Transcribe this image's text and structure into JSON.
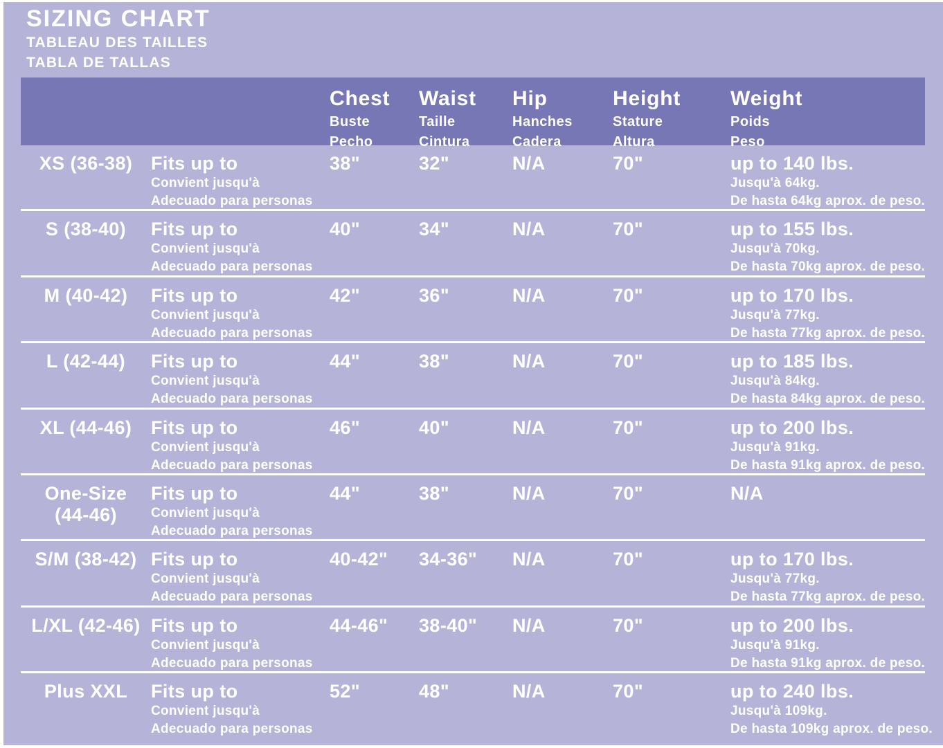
{
  "header": {
    "title": "SIZING CHART",
    "title_fr": "TABLEAU DES TAILLES",
    "title_es": "TABLA DE TALLAS"
  },
  "colors": {
    "background": "#b5b4d8",
    "header_band": "#7777b5",
    "separator": "#ffffff",
    "text": "#ffffff"
  },
  "table": {
    "columns": [
      {
        "label": "Chest",
        "label_fr": "Buste",
        "label_es": "Pecho"
      },
      {
        "label": "Waist",
        "label_fr": "Taille",
        "label_es": "Cintura"
      },
      {
        "label": "Hip",
        "label_fr": "Hanches",
        "label_es": "Cadera"
      },
      {
        "label": "Height",
        "label_fr": "Stature",
        "label_es": "Altura"
      },
      {
        "label": "Weight",
        "label_fr": "Poids",
        "label_es": "Peso"
      }
    ],
    "fits": {
      "en": "Fits up to",
      "fr": "Convient jusqu'à",
      "es": "Adecuado para personas"
    },
    "rows": [
      {
        "size": "XS (36-38)",
        "chest": "38\"",
        "waist": "32\"",
        "hip": "N/A",
        "height": "70\"",
        "weight": "up to 140 lbs.",
        "weight_fr": "Jusqu'à 64kg.",
        "weight_es": "De hasta 64kg aprox. de peso."
      },
      {
        "size": "S (38-40)",
        "chest": "40\"",
        "waist": "34\"",
        "hip": "N/A",
        "height": "70\"",
        "weight": "up to 155 lbs.",
        "weight_fr": "Jusqu'à 70kg.",
        "weight_es": "De hasta 70kg aprox. de peso."
      },
      {
        "size": "M (40-42)",
        "chest": "42\"",
        "waist": "36\"",
        "hip": "N/A",
        "height": "70\"",
        "weight": "up to 170 lbs.",
        "weight_fr": "Jusqu'à 77kg.",
        "weight_es": "De hasta 77kg aprox. de peso."
      },
      {
        "size": "L (42-44)",
        "chest": "44\"",
        "waist": "38\"",
        "hip": "N/A",
        "height": "70\"",
        "weight": "up to 185 lbs.",
        "weight_fr": "Jusqu'à 84kg.",
        "weight_es": "De hasta 84kg aprox. de peso."
      },
      {
        "size": "XL (44-46)",
        "chest": "46\"",
        "waist": "40\"",
        "hip": "N/A",
        "height": "70\"",
        "weight": "up to 200 lbs.",
        "weight_fr": "Jusqu'à 91kg.",
        "weight_es": "De hasta 91kg aprox. de peso."
      },
      {
        "size": "One-Size",
        "size2": "(44-46)",
        "chest": "44\"",
        "waist": "38\"",
        "hip": "N/A",
        "height": "70\"",
        "weight": "N/A"
      },
      {
        "size": "S/M (38-42)",
        "chest": "40-42\"",
        "waist": "34-36\"",
        "hip": "N/A",
        "height": "70\"",
        "weight": "up to 170 lbs.",
        "weight_fr": "Jusqu'à 77kg.",
        "weight_es": "De hasta 77kg aprox. de peso."
      },
      {
        "size": "L/XL (42-46)",
        "chest": "44-46\"",
        "waist": "38-40\"",
        "hip": "N/A",
        "height": "70\"",
        "weight": "up to 200 lbs.",
        "weight_fr": "Jusqu'à 91kg.",
        "weight_es": "De hasta 91kg aprox. de peso."
      },
      {
        "size": "Plus XXL",
        "chest": "52\"",
        "waist": "48\"",
        "hip": "N/A",
        "height": "70\"",
        "weight": "up to 240 lbs.",
        "weight_fr": "Jusqu'à 109kg.",
        "weight_es": "De hasta 109kg aprox. de peso."
      }
    ]
  }
}
